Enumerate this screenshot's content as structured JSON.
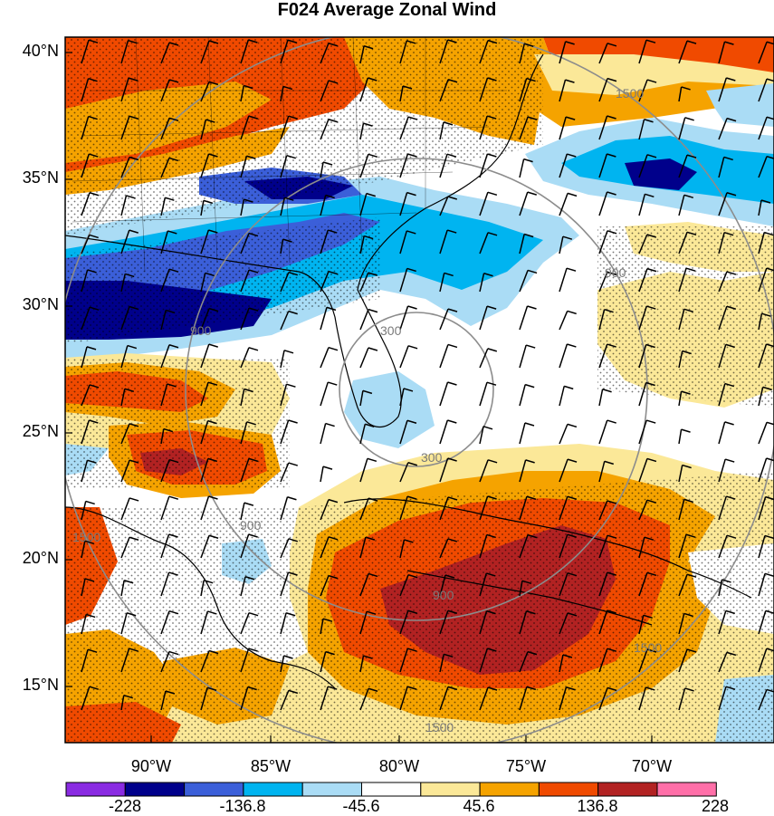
{
  "title": "F024 Average Zonal Wind",
  "lat_labels": [
    {
      "id": "lat-40",
      "text": "40°N",
      "value": 40
    },
    {
      "id": "lat-35",
      "text": "35°N",
      "value": 35
    },
    {
      "id": "lat-30",
      "text": "30°N",
      "value": 30
    },
    {
      "id": "lat-25",
      "text": "25°N",
      "value": 25
    },
    {
      "id": "lat-20",
      "text": "20°N",
      "value": 20
    },
    {
      "id": "lat-15",
      "text": "15°N",
      "value": 15
    }
  ],
  "lon_labels": [
    {
      "id": "lon-90",
      "text": "90°W",
      "value": -90
    },
    {
      "id": "lon-85",
      "text": "85°W",
      "value": -85
    },
    {
      "id": "lon-80",
      "text": "80°W",
      "value": -80
    },
    {
      "id": "lon-75",
      "text": "75°W",
      "value": -75
    },
    {
      "id": "lon-70",
      "text": "70°W",
      "value": -70
    }
  ],
  "range_ring_labels": [
    "300",
    "300",
    "900",
    "900",
    "900",
    "900",
    "1500",
    "1500",
    "1500",
    "1500"
  ],
  "colorbar": {
    "colors": [
      "#8a2be2",
      "#00008b",
      "#3b5fd9",
      "#00b4f0",
      "#aadcf5",
      "#ffffff",
      "#fbe898",
      "#f5a300",
      "#f04a00",
      "#b22222",
      "#ff6fa8"
    ],
    "tick_labels": [
      "-228",
      "-136.8",
      "-45.6",
      "45.6",
      "136.8",
      "228"
    ]
  }
}
